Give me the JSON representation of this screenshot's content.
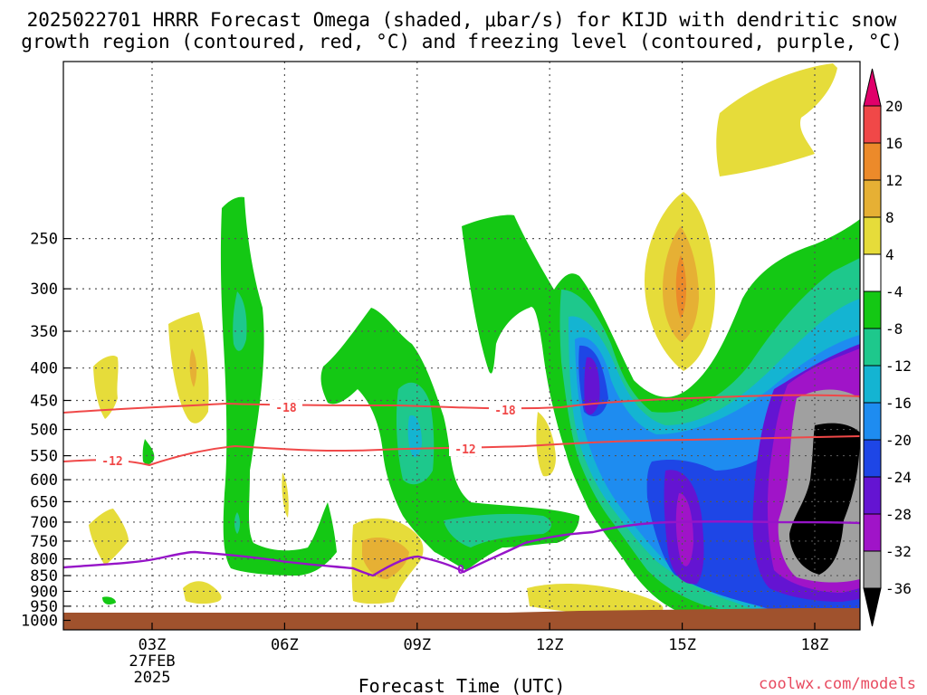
{
  "title_line1": "2025022701 HRRR Forecast Omega (shaded, μbar/s) for KIJD with dendritic snow",
  "title_line2": "growth region (contoured, red, °C) and freezing level (contoured, purple, °C)",
  "credit": "coolwx.com/models",
  "chart_data": {
    "type": "contour",
    "xlabel": "Forecast Time (UTC)",
    "ylabel": "",
    "x_ticks": [
      {
        "hour": 3,
        "label": "03Z",
        "sub1": "27FEB",
        "sub2": "2025"
      },
      {
        "hour": 6,
        "label": "06Z",
        "sub1": "",
        "sub2": ""
      },
      {
        "hour": 9,
        "label": "09Z",
        "sub1": "",
        "sub2": ""
      },
      {
        "hour": 12,
        "label": "12Z",
        "sub1": "",
        "sub2": ""
      },
      {
        "hour": 15,
        "label": "15Z",
        "sub1": "",
        "sub2": ""
      },
      {
        "hour": 18,
        "label": "18Z",
        "sub1": "",
        "sub2": ""
      }
    ],
    "y_ticks": [
      250,
      300,
      350,
      400,
      450,
      500,
      550,
      600,
      650,
      700,
      750,
      800,
      850,
      900,
      950,
      1000
    ],
    "grid": true,
    "colorbar": {
      "ticks": [
        "20",
        "16",
        "12",
        "8",
        "4",
        "-4",
        "-8",
        "-12",
        "-16",
        "-20",
        "-24",
        "-28",
        "-32",
        "-36"
      ],
      "colors": [
        "#e0006a",
        "#f04848",
        "#ec8a2a",
        "#e6b034",
        "#e6dc3a",
        "#ffffff",
        "#14c814",
        "#1ec88c",
        "#14b4d2",
        "#1e8cf0",
        "#1e46e6",
        "#6414d2",
        "#a014c8",
        "#a0a0a0",
        "#000000"
      ]
    },
    "contour_labels": {
      "dgz_top": "-18",
      "dgz_bottom": "-12",
      "freezing": "0"
    },
    "colors": {
      "dgz": "#f04848",
      "freezing": "#9614c8",
      "terrain": "#a0522d"
    }
  }
}
